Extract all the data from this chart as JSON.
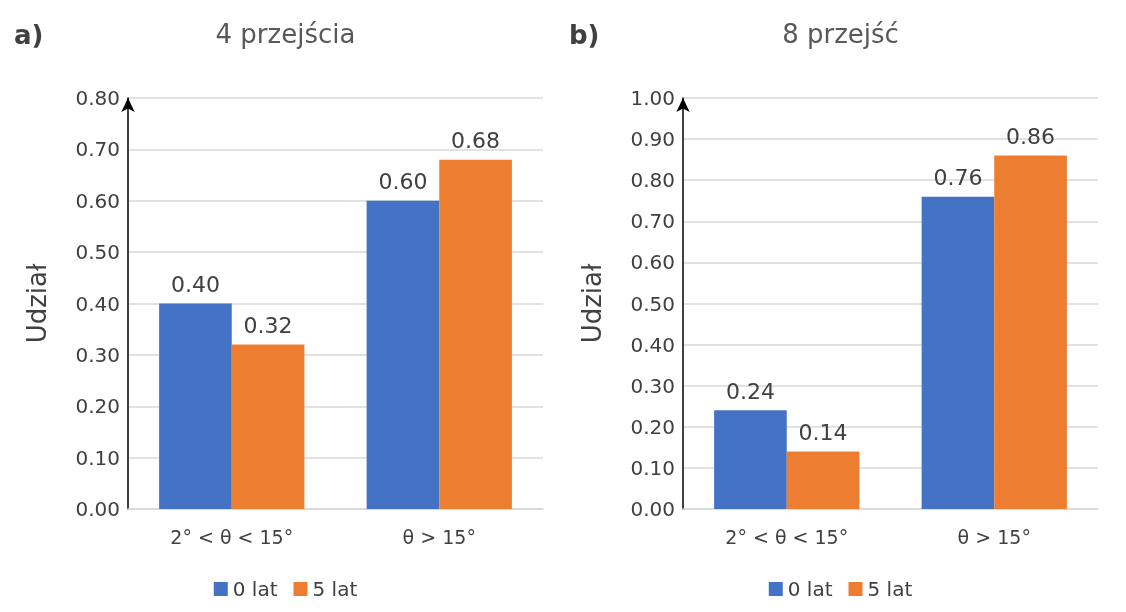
{
  "chart_data": [
    {
      "type": "bar",
      "title": "4 przejścia",
      "annotations": [
        "a)"
      ],
      "ylabel": "Udział",
      "categories": [
        "2° < θ < 15°",
        "θ > 15°"
      ],
      "series": [
        {
          "name": "0 lat",
          "color": "#4472c4",
          "values": [
            0.4,
            0.6
          ],
          "value_labels": [
            "0.40",
            "0.60"
          ]
        },
        {
          "name": "5 lat",
          "color": "#ed7d31",
          "values": [
            0.32,
            0.68
          ],
          "value_labels": [
            "0.32",
            "0.68"
          ]
        }
      ],
      "ylim": [
        0,
        0.8
      ],
      "yticks": [
        {
          "value": 0,
          "label": "0.00"
        },
        {
          "value": 0.1,
          "label": "0.10"
        },
        {
          "value": 0.2,
          "label": "0.20"
        },
        {
          "value": 0.3,
          "label": "0.30"
        },
        {
          "value": 0.4,
          "label": "0.40"
        },
        {
          "value": 0.5,
          "label": "0.50"
        },
        {
          "value": 0.6,
          "label": "0.60"
        },
        {
          "value": 0.7,
          "label": "0.70"
        },
        {
          "value": 0.8,
          "label": "0.80"
        }
      ],
      "grid": "y",
      "legend": "bottom"
    },
    {
      "type": "bar",
      "title": "8 przejść",
      "annotations": [
        "b)"
      ],
      "ylabel": "Udział",
      "categories": [
        "2° < θ < 15°",
        "θ > 15°"
      ],
      "series": [
        {
          "name": "0 lat",
          "color": "#4472c4",
          "values": [
            0.24,
            0.76
          ],
          "value_labels": [
            "0.24",
            "0.76"
          ]
        },
        {
          "name": "5 lat",
          "color": "#ed7d31",
          "values": [
            0.14,
            0.86
          ],
          "value_labels": [
            "0.14",
            "0.86"
          ]
        }
      ],
      "ylim": [
        0,
        1
      ],
      "yticks": [
        {
          "value": 0,
          "label": "0.00"
        },
        {
          "value": 0.1,
          "label": "0.10"
        },
        {
          "value": 0.2,
          "label": "0.20"
        },
        {
          "value": 0.3,
          "label": "0.30"
        },
        {
          "value": 0.4,
          "label": "0.40"
        },
        {
          "value": 0.5,
          "label": "0.50"
        },
        {
          "value": 0.6,
          "label": "0.60"
        },
        {
          "value": 0.7,
          "label": "0.70"
        },
        {
          "value": 0.8,
          "label": "0.80"
        },
        {
          "value": 0.9,
          "label": "0.90"
        },
        {
          "value": 1,
          "label": "1.00"
        }
      ],
      "grid": "y",
      "legend": "bottom"
    }
  ]
}
